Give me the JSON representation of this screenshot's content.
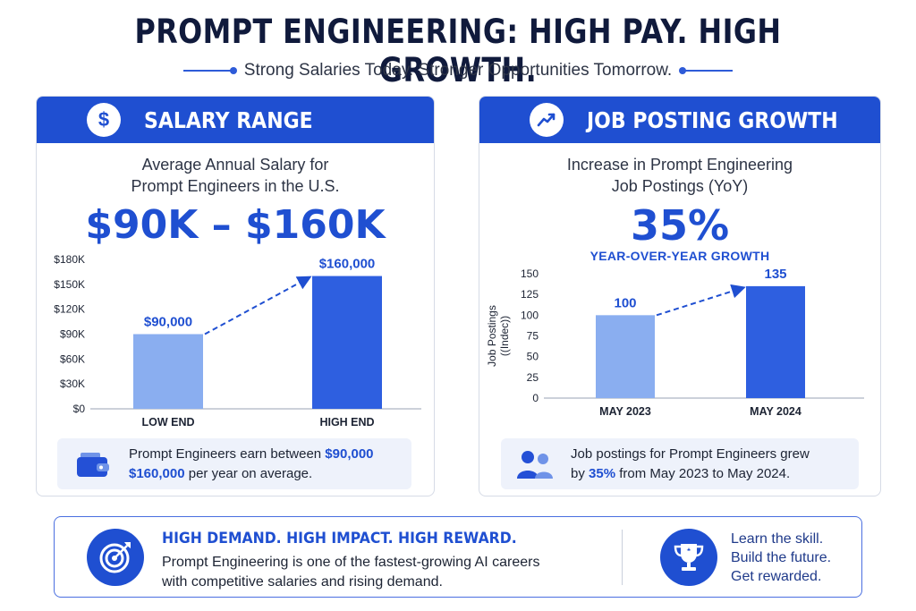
{
  "header": {
    "title": "PROMPT ENGINEERING: HIGH PAY. HIGH GROWTH.",
    "subtitle": "Strong Salaries Today. Stronger Opportunities Tomorrow."
  },
  "salary_card": {
    "title": "SALARY RANGE",
    "icon": "dollar-icon",
    "subtitle_line1": "Average Annual Salary for",
    "subtitle_line2": "Prompt Engineers in the U.S.",
    "big_value": "$90K – $160K",
    "info_pre": "Prompt Engineers earn between ",
    "info_val1": "$90,000",
    "info_mid": " and ",
    "info_val2": "$160,000",
    "info_post": " per year on average.",
    "info_icon": "wallet-icon"
  },
  "growth_card": {
    "title": "JOB POSTING GROWTH",
    "icon": "trending-up-icon",
    "subtitle_line1": "Increase in Prompt Engineering",
    "subtitle_line2": "Job Postings (YoY)",
    "big_value": "35%",
    "growth_label": "YEAR-OVER-YEAR GROWTH",
    "info_line1": "Job postings for Prompt Engineers grew",
    "info_pre": "by ",
    "info_val": "35%",
    "info_post": " from May 2023 to May 2024.",
    "info_icon": "users-icon"
  },
  "bottom": {
    "headline": "HIGH DEMAND. HIGH IMPACT. HIGH REWARD.",
    "text": "Prompt Engineering is one of the fastest-growing AI careers with competitive salaries and rising demand.",
    "right_line1": "Learn the skill.",
    "right_line2": "Build the future.",
    "right_line3": "Get rewarded.",
    "left_icon": "target-icon",
    "right_icon": "trophy-icon"
  },
  "colors": {
    "accent": "#1f4fd1",
    "bar_light": "#8aaef0",
    "bar_dark": "#2e5fe0"
  },
  "chart_data": [
    {
      "type": "bar",
      "categories": [
        "LOW END",
        "HIGH END"
      ],
      "values": [
        90000,
        160000
      ],
      "data_labels": [
        "$90,000",
        "$160,000"
      ],
      "y_ticks": [
        0,
        30000,
        60000,
        90000,
        120000,
        150000,
        180000
      ],
      "y_tick_labels": [
        "$0",
        "$30K",
        "$60K",
        "$90K",
        "$120K",
        "$150K",
        "$180K"
      ],
      "ylim": [
        0,
        180000
      ],
      "ylabel": "",
      "grid": false
    },
    {
      "type": "bar",
      "categories": [
        "MAY 2023",
        "MAY 2024"
      ],
      "values": [
        100,
        135
      ],
      "data_labels": [
        "100",
        "135"
      ],
      "y_ticks": [
        0,
        25,
        50,
        75,
        100,
        125,
        150
      ],
      "y_tick_labels": [
        "0",
        "25",
        "50",
        "75",
        "100",
        "125",
        "150"
      ],
      "ylim": [
        0,
        150
      ],
      "ylabel": "Job Postings (Indec)",
      "grid": false
    }
  ]
}
